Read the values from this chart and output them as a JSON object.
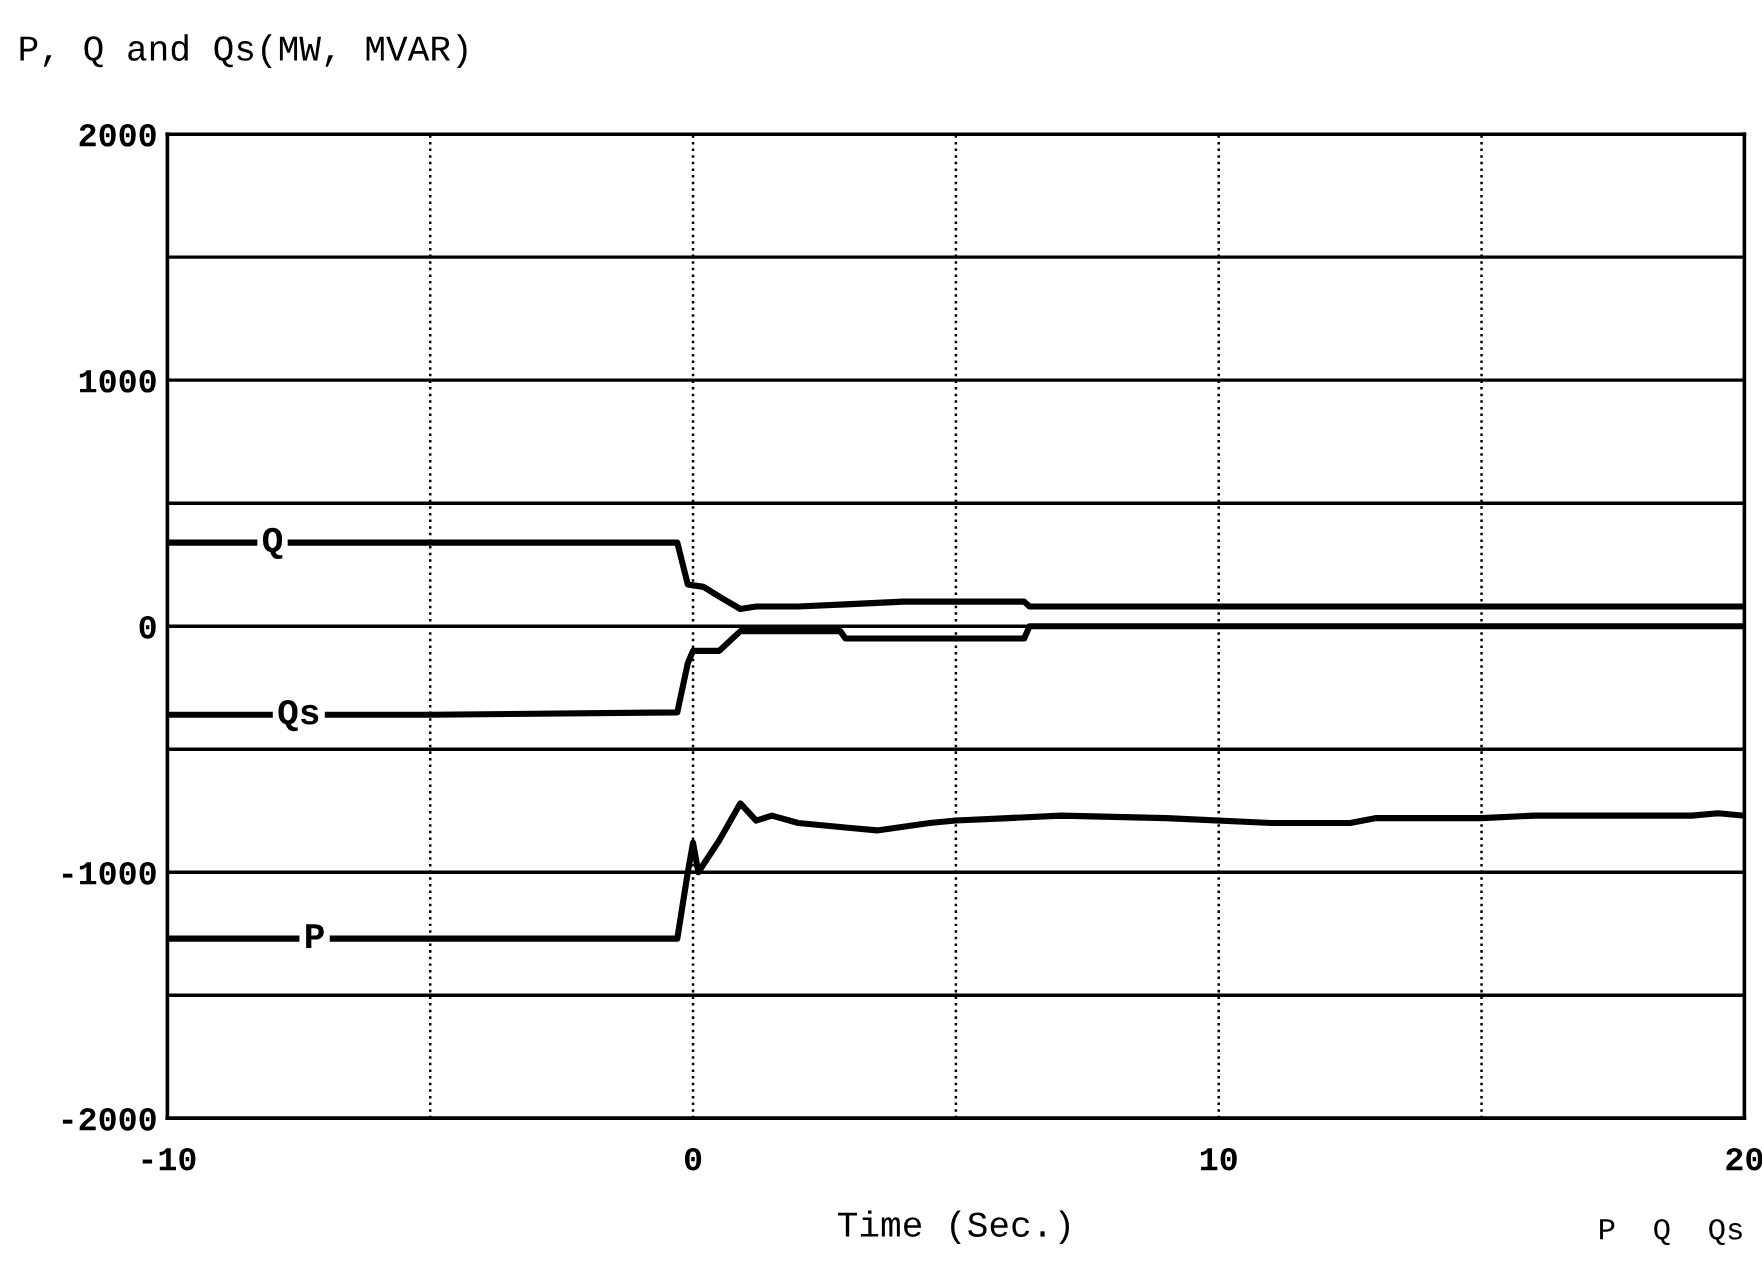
{
  "chart_data": {
    "type": "line",
    "title": "P, Q and Qs(MW, MVAR)",
    "xlabel": "Time (Sec.)",
    "xlim": [
      -10,
      20
    ],
    "ylim": [
      -2000,
      2000
    ],
    "xticks": [
      -10,
      {
        "value": -5,
        "label": null
      },
      0,
      {
        "value": 5,
        "label": null
      },
      10,
      {
        "value": 15,
        "label": null
      },
      20
    ],
    "yticks": [
      -2000,
      {
        "value": -1500,
        "label": null
      },
      -1000,
      {
        "value": -500,
        "label": null
      },
      0,
      {
        "value": 500,
        "label": null
      },
      1000,
      {
        "value": 1500,
        "label": null
      },
      2000
    ],
    "grid": true,
    "line_style": "solid",
    "marker": "none",
    "annotations": [
      "P  Q  Qs"
    ],
    "series": [
      {
        "name": "Q",
        "color": "#000000",
        "x": [
          -10,
          -5,
          -0.3,
          -0.1,
          0.2,
          0.5,
          0.9,
          1.2,
          2,
          3,
          4,
          5,
          6.3,
          6.4,
          8,
          10,
          12,
          15,
          18,
          20
        ],
        "values": [
          340,
          340,
          340,
          170,
          160,
          120,
          70,
          80,
          80,
          90,
          100,
          100,
          100,
          80,
          80,
          80,
          80,
          80,
          80,
          80
        ]
      },
      {
        "name": "Qs",
        "color": "#000000",
        "x": [
          -10,
          -5,
          -0.3,
          -0.1,
          0.0,
          0.5,
          0.9,
          1.5,
          2.8,
          2.9,
          5,
          6.3,
          6.4,
          8,
          10,
          12,
          15,
          18,
          20
        ],
        "values": [
          -360,
          -360,
          -350,
          -150,
          -100,
          -100,
          -20,
          -20,
          -20,
          -50,
          -50,
          -50,
          0,
          0,
          0,
          0,
          0,
          0,
          0
        ]
      },
      {
        "name": "P",
        "color": "#000000",
        "x": [
          -10,
          -5,
          -0.3,
          -0.1,
          0.0,
          0.1,
          0.5,
          0.9,
          1.2,
          1.5,
          2,
          3,
          3.5,
          4.5,
          5,
          6,
          7,
          9,
          11,
          12.5,
          13,
          15,
          16,
          19,
          19.5,
          20
        ],
        "values": [
          -1270,
          -1270,
          -1270,
          -1000,
          -880,
          -1000,
          -870,
          -720,
          -790,
          -770,
          -800,
          -820,
          -830,
          -800,
          -790,
          -780,
          -770,
          -780,
          -800,
          -800,
          -780,
          -780,
          -770,
          -770,
          -760,
          -770
        ]
      }
    ]
  }
}
